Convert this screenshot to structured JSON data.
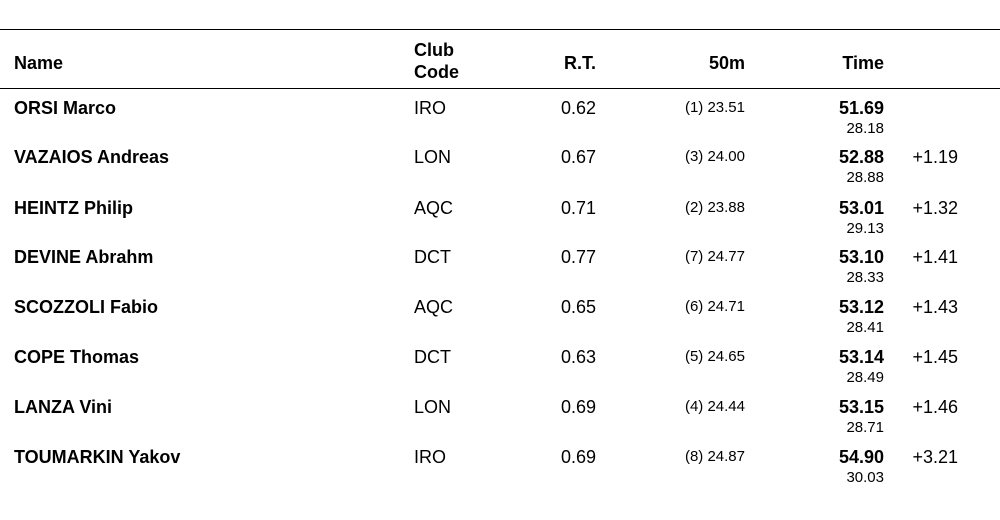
{
  "headers": {
    "name": "Name",
    "club_line1": "Club",
    "club_line2": "Code",
    "rt": "R.T.",
    "split": "50m",
    "time": "Time"
  },
  "rows": [
    {
      "name": "ORSI Marco",
      "club": "IRO",
      "rt": "0.62",
      "split": "(1) 23.51",
      "time": "51.69",
      "second_split": "28.18",
      "behind": ""
    },
    {
      "name": "VAZAIOS Andreas",
      "club": "LON",
      "rt": "0.67",
      "split": "(3) 24.00",
      "time": "52.88",
      "second_split": "28.88",
      "behind": "+1.19"
    },
    {
      "name": "HEINTZ Philip",
      "club": "AQC",
      "rt": "0.71",
      "split": "(2) 23.88",
      "time": "53.01",
      "second_split": "29.13",
      "behind": "+1.32"
    },
    {
      "name": "DEVINE Abrahm",
      "club": "DCT",
      "rt": "0.77",
      "split": "(7) 24.77",
      "time": "53.10",
      "second_split": "28.33",
      "behind": "+1.41"
    },
    {
      "name": "SCOZZOLI Fabio",
      "club": "AQC",
      "rt": "0.65",
      "split": "(6) 24.71",
      "time": "53.12",
      "second_split": "28.41",
      "behind": "+1.43"
    },
    {
      "name": "COPE Thomas",
      "club": "DCT",
      "rt": "0.63",
      "split": "(5) 24.65",
      "time": "53.14",
      "second_split": "28.49",
      "behind": "+1.45"
    },
    {
      "name": "LANZA Vini",
      "club": "LON",
      "rt": "0.69",
      "split": "(4) 24.44",
      "time": "53.15",
      "second_split": "28.71",
      "behind": "+1.46"
    },
    {
      "name": "TOUMARKIN Yakov",
      "club": "IRO",
      "rt": "0.69",
      "split": "(8) 24.87",
      "time": "54.90",
      "second_split": "30.03",
      "behind": "+3.21"
    }
  ]
}
